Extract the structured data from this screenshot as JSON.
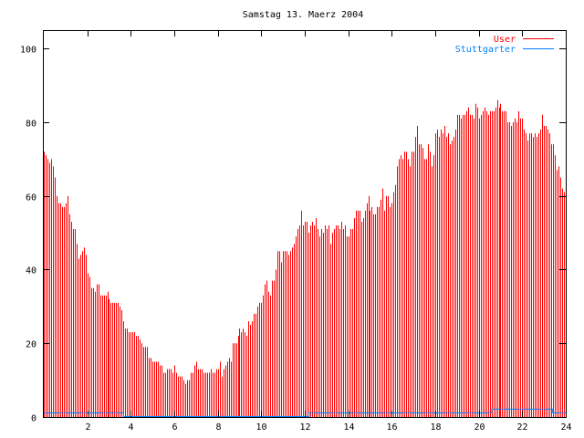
{
  "chart_data": {
    "type": "bar",
    "title": "Samstag 13. Maerz 2004",
    "xlabel": "",
    "ylabel": "",
    "xlim": [
      0,
      24
    ],
    "ylim": [
      0,
      105
    ],
    "xticks": [
      2,
      4,
      6,
      8,
      10,
      12,
      14,
      16,
      18,
      20,
      22,
      24
    ],
    "yticks": [
      0,
      20,
      40,
      60,
      80,
      100
    ],
    "grid": false,
    "legend": "top-right",
    "x_step_hours": 0.0833333,
    "series": [
      {
        "name": "User",
        "style": "impulses",
        "color": "#ff0000",
        "values": [
          72,
          71,
          70,
          69,
          70,
          68,
          65,
          60,
          58,
          58,
          57,
          57,
          58,
          60,
          55,
          53,
          51,
          51,
          47,
          43,
          44,
          45,
          46,
          44,
          39,
          38,
          35,
          35,
          34,
          36,
          36,
          33,
          33,
          33,
          33,
          34,
          32,
          31,
          31,
          31,
          31,
          31,
          30,
          29,
          26,
          24,
          24,
          23,
          23,
          23,
          23,
          22,
          22,
          21,
          20,
          19,
          19,
          19,
          16,
          16,
          15,
          15,
          15,
          15,
          14,
          14,
          12,
          12,
          13,
          13,
          13,
          12,
          14,
          12,
          11,
          11,
          11,
          10,
          9,
          10,
          10,
          12,
          12,
          14,
          15,
          13,
          13,
          13,
          12,
          12,
          12,
          12,
          13,
          12,
          12,
          13,
          13,
          15,
          11,
          13,
          14,
          15,
          16,
          15,
          20,
          20,
          20,
          22,
          24,
          23,
          24,
          23,
          22,
          26,
          25,
          26,
          28,
          28,
          30,
          31,
          31,
          33,
          36,
          37,
          34,
          33,
          37,
          37,
          40,
          45,
          45,
          42,
          45,
          45,
          45,
          44,
          45,
          46,
          47,
          49,
          51,
          52,
          56,
          52,
          53,
          53,
          50,
          52,
          53,
          52,
          54,
          51,
          49,
          51,
          50,
          52,
          51,
          52,
          47,
          50,
          51,
          52,
          52,
          51,
          53,
          51,
          52,
          49,
          49,
          51,
          51,
          54,
          56,
          56,
          56,
          53,
          54,
          56,
          58,
          60,
          56,
          57,
          55,
          55,
          57,
          57,
          59,
          62,
          56,
          60,
          60,
          57,
          58,
          61,
          63,
          68,
          70,
          71,
          70,
          72,
          72,
          70,
          68,
          72,
          72,
          76,
          79,
          74,
          74,
          73,
          70,
          70,
          74,
          72,
          68,
          71,
          77,
          78,
          76,
          78,
          77,
          79,
          76,
          77,
          74,
          75,
          76,
          78,
          82,
          82,
          81,
          82,
          82,
          83,
          84,
          82,
          82,
          81,
          85,
          84,
          81,
          82,
          83,
          84,
          83,
          82,
          83,
          83,
          83,
          84,
          86,
          84,
          85,
          83,
          83,
          83,
          80,
          80,
          79,
          80,
          81,
          80,
          83,
          81,
          81,
          78,
          77,
          75,
          77,
          77,
          76,
          77,
          76,
          77,
          78,
          82,
          79,
          79,
          78,
          77,
          74,
          74,
          71,
          67,
          68,
          65,
          62,
          61
        ]
      },
      {
        "name": "Stuttgarter",
        "style": "steps",
        "color": "#0080ff",
        "points": [
          [
            0,
            1
          ],
          [
            3.67,
            1
          ],
          [
            3.67,
            0
          ],
          [
            12.2,
            0
          ],
          [
            12.2,
            1
          ],
          [
            20.6,
            1
          ],
          [
            20.6,
            2
          ],
          [
            23.4,
            2
          ],
          [
            23.4,
            1
          ],
          [
            24,
            1
          ]
        ]
      }
    ]
  }
}
